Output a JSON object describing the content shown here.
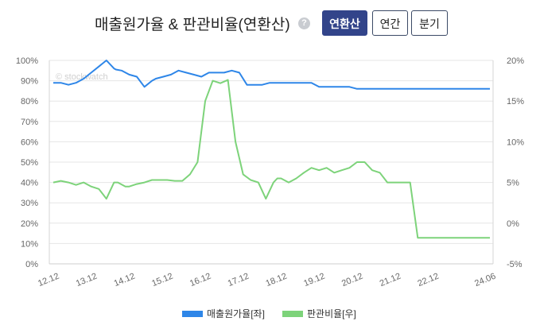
{
  "header": {
    "title": "매출원가율 & 판관비율(연환산)",
    "help_icon": "question-circle-icon",
    "buttons": [
      {
        "label": "연환산",
        "active": true
      },
      {
        "label": "연간",
        "active": false
      },
      {
        "label": "분기",
        "active": false
      }
    ]
  },
  "colors": {
    "series_left": "#2e86e8",
    "series_right": "#7dd37a",
    "active_button": "#32448a"
  },
  "chart_data": {
    "type": "line",
    "watermark": "© stockwatch",
    "x_tick_labels": [
      "12.12",
      "13.12",
      "14.12",
      "15.12",
      "16.12",
      "17.12",
      "18.12",
      "19.12",
      "20.12",
      "21.12",
      "22.12",
      "24.06"
    ],
    "left_axis": {
      "ylim": [
        0,
        100
      ],
      "ticks": [
        "0%",
        "10%",
        "20%",
        "30%",
        "40%",
        "50%",
        "60%",
        "70%",
        "80%",
        "90%",
        "100%"
      ]
    },
    "right_axis": {
      "ylim": [
        -5,
        20
      ],
      "ticks": [
        "-5%",
        "0%",
        "5%",
        "10%",
        "15%",
        "20%"
      ]
    },
    "grid": true,
    "legend_position": "bottom",
    "series": [
      {
        "name": "매출원가율[좌]",
        "axis": "left",
        "x": [
          0,
          0.2,
          0.4,
          0.6,
          0.8,
          1.0,
          1.2,
          1.4,
          1.6,
          1.65,
          1.8,
          2.0,
          2.2,
          2.4,
          2.6,
          2.7,
          2.9,
          3.1,
          3.3,
          3.5,
          3.7,
          3.9,
          4.1,
          4.3,
          4.5,
          4.7,
          4.9,
          5.1,
          5.3,
          5.5,
          5.7,
          5.9,
          6.0,
          6.2,
          6.4,
          6.6,
          6.8,
          7.0,
          7.2,
          7.5,
          7.8,
          8.0,
          8.2,
          8.4,
          8.6,
          8.8,
          9.0,
          9.2,
          9.4,
          9.6,
          9.8,
          10.0,
          10.2,
          10.4,
          10.6,
          10.8,
          11.0,
          11.2,
          11.4,
          11.5
        ],
        "values": [
          89,
          89,
          88,
          89,
          91,
          94,
          97,
          100,
          96,
          95.5,
          95,
          93,
          92,
          87,
          90,
          91,
          92,
          93,
          95,
          94,
          93,
          92,
          94,
          94,
          94,
          95,
          94,
          88,
          88,
          88,
          89,
          89,
          89,
          89,
          89,
          89,
          89,
          87,
          87,
          87,
          87,
          86,
          86,
          86,
          86,
          86,
          86,
          86,
          86,
          86,
          86,
          86,
          86,
          86,
          86,
          86,
          86,
          86,
          86,
          86
        ]
      },
      {
        "name": "판관비율[우]",
        "axis": "right",
        "x": [
          0,
          0.2,
          0.4,
          0.6,
          0.8,
          1.0,
          1.2,
          1.4,
          1.6,
          1.7,
          1.9,
          2.0,
          2.2,
          2.4,
          2.6,
          2.8,
          3.0,
          3.2,
          3.4,
          3.6,
          3.8,
          4.0,
          4.2,
          4.4,
          4.6,
          4.8,
          5.0,
          5.2,
          5.4,
          5.6,
          5.8,
          5.9,
          6.0,
          6.2,
          6.4,
          6.6,
          6.8,
          7.0,
          7.2,
          7.4,
          7.6,
          7.8,
          8.0,
          8.2,
          8.4,
          8.6,
          8.8,
          9.0,
          9.2,
          9.4,
          9.6,
          9.8,
          10.0,
          10.2,
          10.4,
          10.6,
          10.8,
          11.0,
          11.2,
          11.35,
          11.5
        ],
        "values": [
          5,
          5.2,
          5,
          4.7,
          5,
          4.5,
          4.2,
          3,
          5,
          5,
          4.5,
          4.5,
          4.8,
          5,
          5.3,
          5.3,
          5.3,
          5.2,
          5.2,
          6,
          7.5,
          15,
          17.5,
          17.2,
          17.6,
          10,
          6,
          5.3,
          5,
          3,
          5,
          5.5,
          5.5,
          5,
          5.5,
          6.2,
          6.8,
          6.5,
          6.8,
          6.2,
          6.5,
          6.8,
          7.5,
          7.5,
          6.5,
          6.2,
          5,
          5,
          5,
          5,
          -1.8,
          -1.8,
          -1.8,
          -1.8,
          -1.8,
          -1.8,
          -1.8,
          -1.8,
          -1.8,
          -1.8,
          -1.8
        ]
      }
    ]
  }
}
